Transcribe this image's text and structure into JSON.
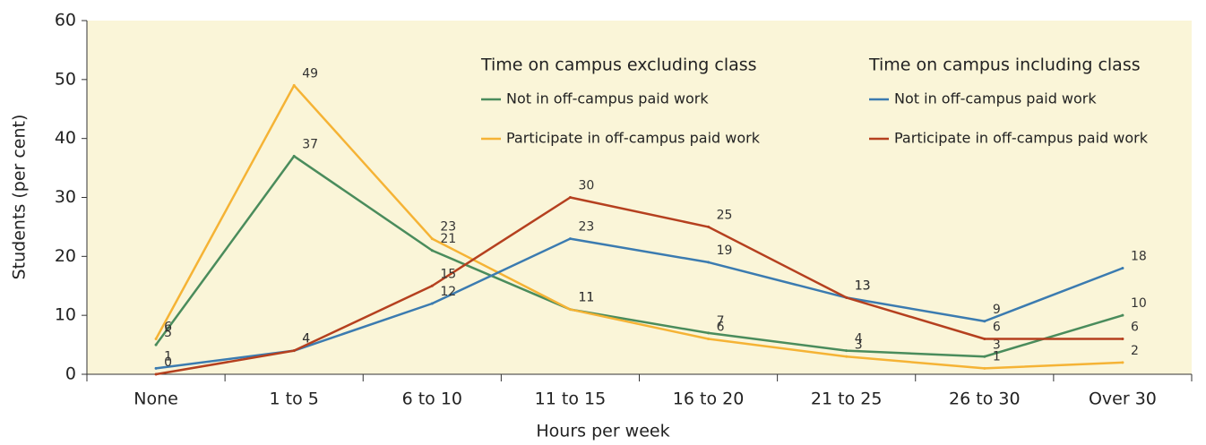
{
  "chart_data": {
    "type": "line",
    "x_label": "Hours per week",
    "y_label": "Students (per cent)",
    "categories": [
      "None",
      "1 to 5",
      "6 to 10",
      "11 to 15",
      "16 to 20",
      "21 to 25",
      "26 to 30",
      "Over 30"
    ],
    "legend_titles": [
      "Time on campus excluding class",
      "Time on campus including class"
    ],
    "series": [
      {
        "name": "Not in off-campus paid work",
        "color": "#4a8c5c",
        "values": [
          5,
          37,
          21,
          11,
          7,
          4,
          3,
          10
        ]
      },
      {
        "name": "Participate in off-campus paid work",
        "color": "#f5b335",
        "values": [
          6,
          49,
          23,
          11,
          6,
          3,
          1,
          2
        ]
      },
      {
        "name": "Not in off-campus paid work",
        "color": "#3b7bb0",
        "values": [
          1,
          4,
          12,
          23,
          19,
          13,
          9,
          18
        ]
      },
      {
        "name": "Participate in off-campus paid work",
        "color": "#b5401f",
        "values": [
          0,
          4,
          15,
          30,
          25,
          13,
          6,
          6
        ]
      }
    ],
    "ylim": [
      0,
      60
    ],
    "yticks": [
      0,
      10,
      20,
      30,
      40,
      50,
      60
    ],
    "background": "#faf5d8"
  }
}
